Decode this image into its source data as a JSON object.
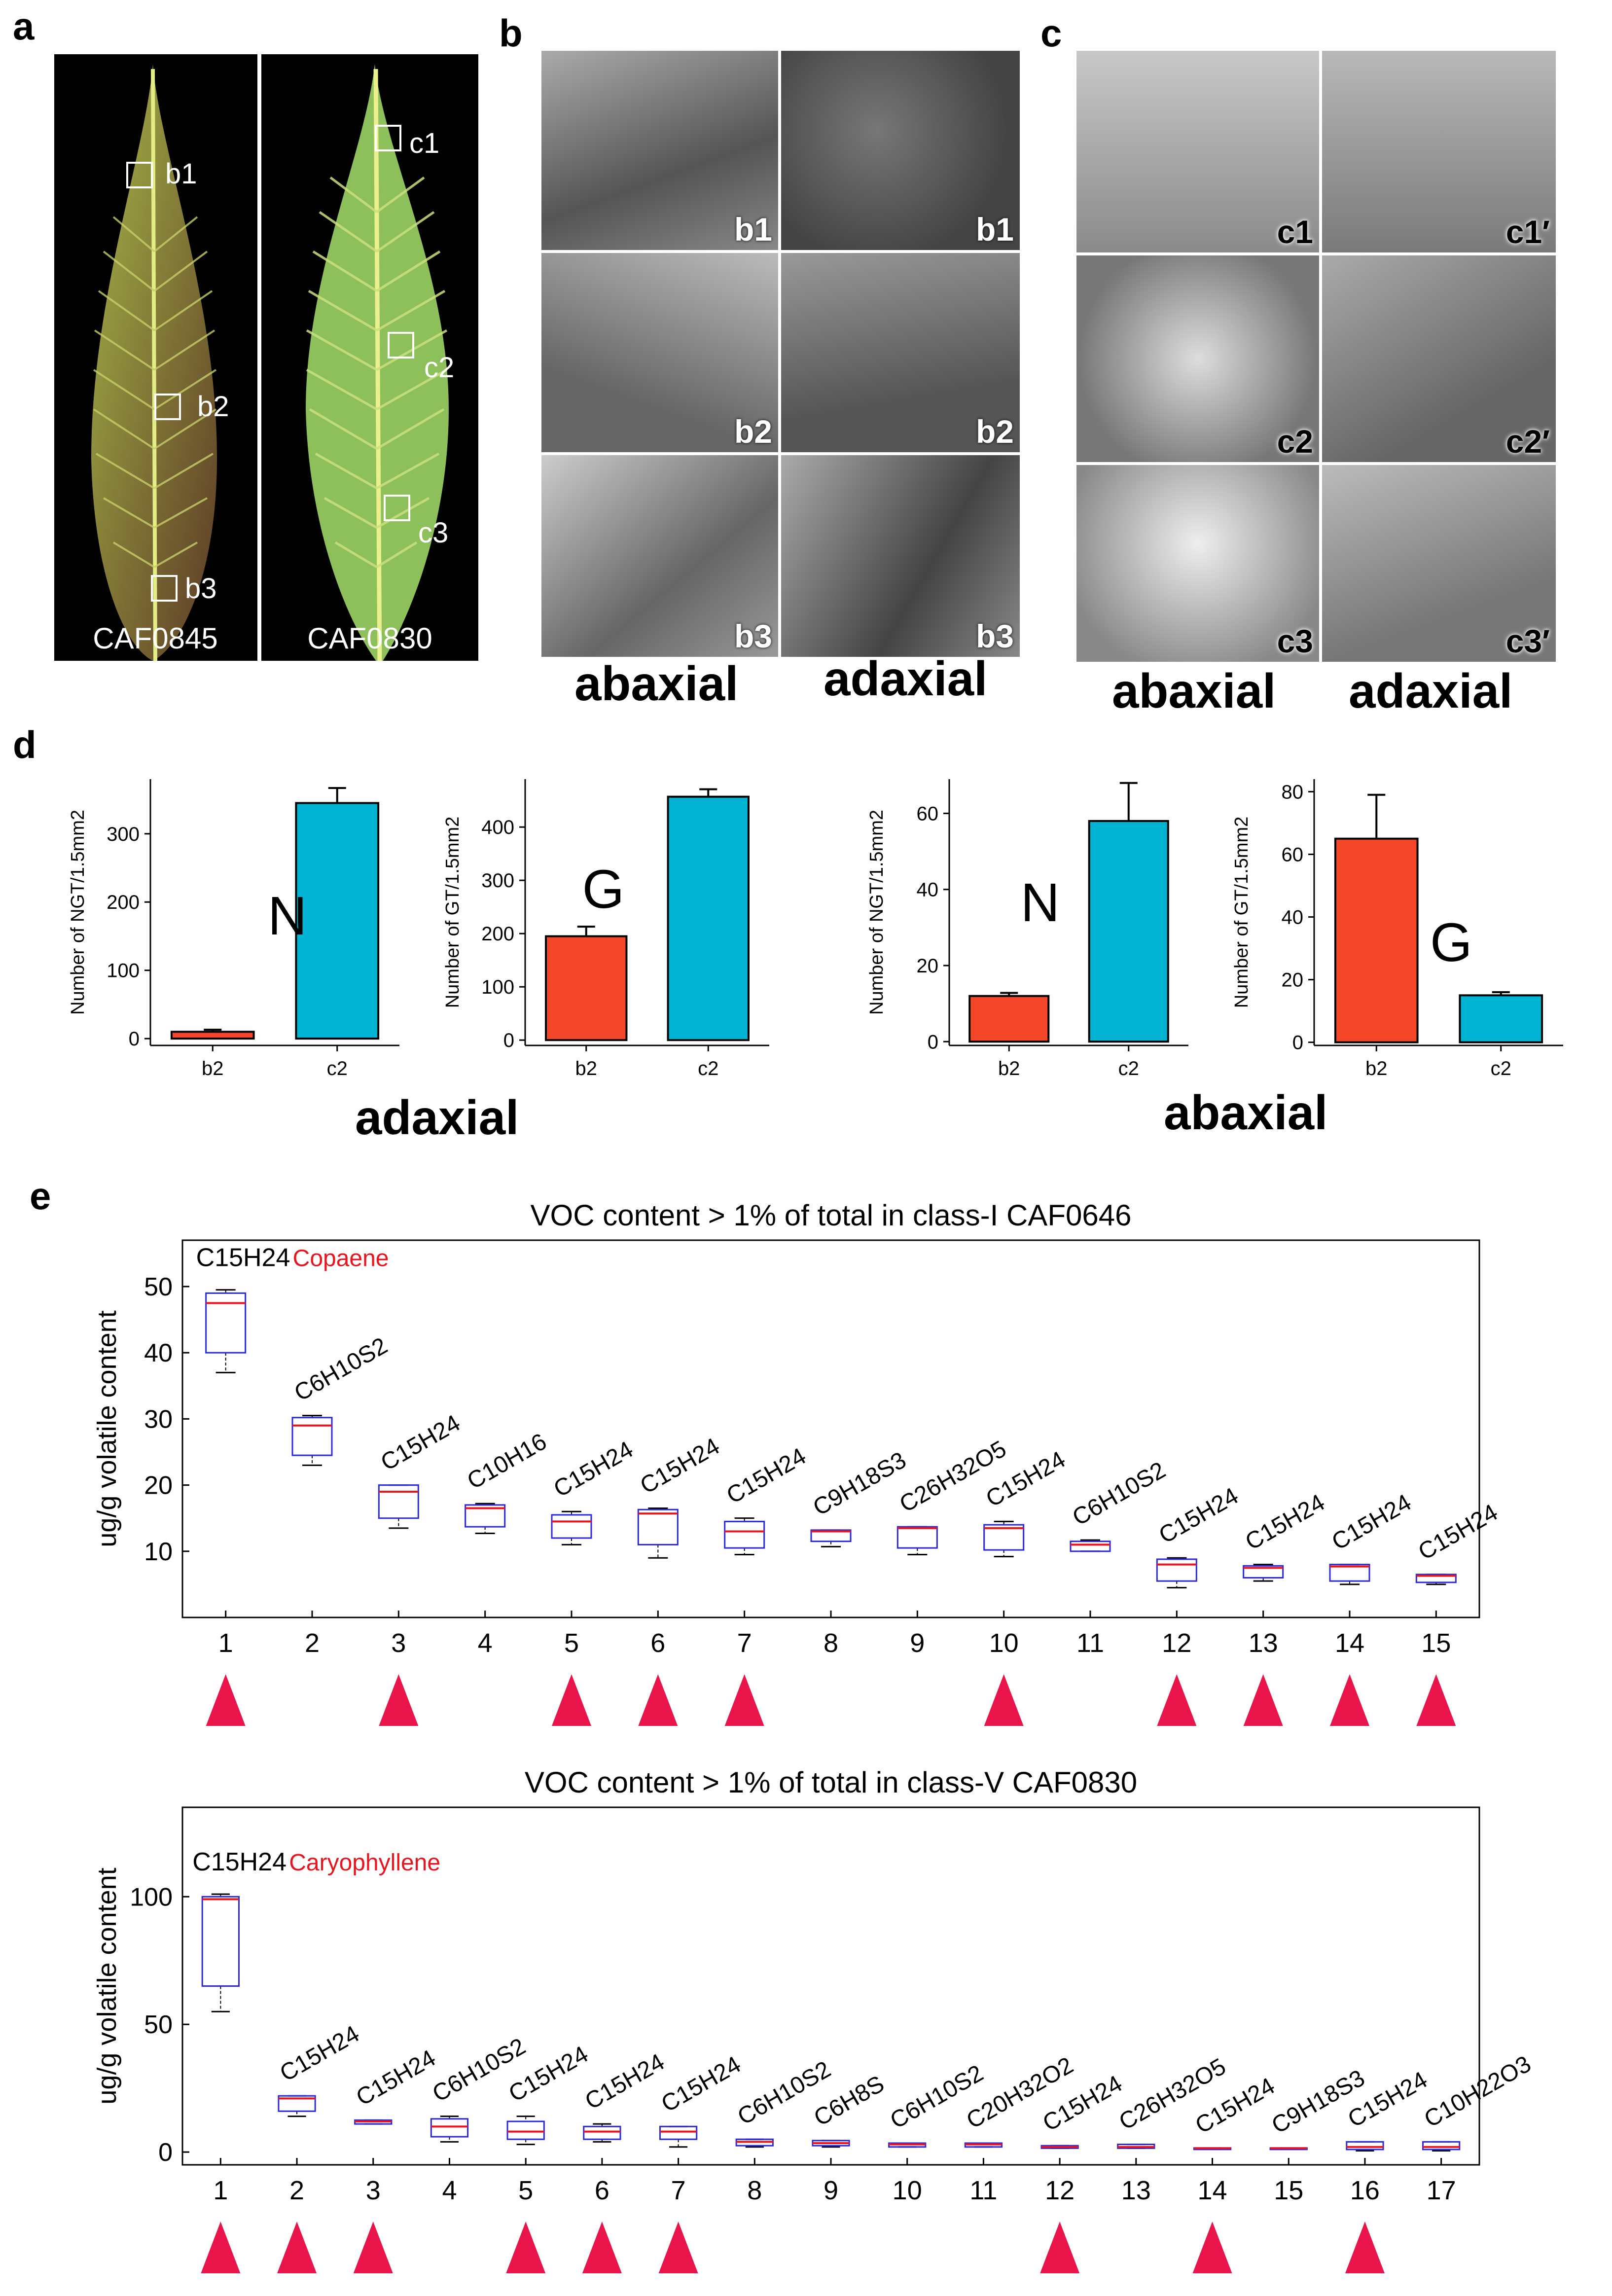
{
  "panels": {
    "a": "a",
    "b": "b",
    "c": "c",
    "d": "d",
    "e": "e"
  },
  "panel_a": {
    "leaves": [
      {
        "name": "CAF0845",
        "boxes": [
          "b1",
          "b2",
          "b3"
        ]
      },
      {
        "name": "CAF0830",
        "boxes": [
          "c1",
          "c2",
          "c3"
        ]
      }
    ]
  },
  "panel_b": {
    "tiles": [
      [
        "b1",
        "b1"
      ],
      [
        "b2",
        "b2"
      ],
      [
        "b3",
        "b3"
      ]
    ],
    "col_labels": [
      "abaxial",
      "adaxial"
    ]
  },
  "panel_c": {
    "tiles": [
      [
        "c1",
        "c1′"
      ],
      [
        "c2",
        "c2′"
      ],
      [
        "c3",
        "c3′"
      ]
    ],
    "col_labels": [
      "abaxial",
      "adaxial"
    ]
  },
  "panel_d": {
    "group_labels": [
      "adaxial",
      "abaxial"
    ],
    "colors": {
      "b2": "#f4472a",
      "c2": "#00b3d2"
    },
    "chart_data": [
      {
        "type": "bar",
        "ylabel": "Number of NGT/1.5mm2",
        "letter": "N",
        "categories": [
          "b2",
          "c2"
        ],
        "values": [
          10,
          345
        ],
        "errors": [
          3,
          22
        ],
        "yticks": [
          0,
          100,
          200,
          300
        ],
        "ylim": [
          -10,
          380
        ]
      },
      {
        "type": "bar",
        "ylabel": "Number of GT/1.5mm2",
        "letter": "G",
        "categories": [
          "b2",
          "c2"
        ],
        "values": [
          195,
          457
        ],
        "errors": [
          18,
          14
        ],
        "yticks": [
          0,
          100,
          200,
          300,
          400
        ],
        "ylim": [
          -10,
          490
        ]
      },
      {
        "type": "bar",
        "ylabel": "Number of NGT/1.5mm2",
        "letter": "N",
        "categories": [
          "b2",
          "c2"
        ],
        "values": [
          12,
          58
        ],
        "errors": [
          0.8,
          10
        ],
        "yticks": [
          0,
          20,
          40,
          60
        ],
        "ylim": [
          -1,
          69
        ]
      },
      {
        "type": "bar",
        "ylabel": "Number of GT/1.5mm2",
        "letter": "G",
        "categories": [
          "b2",
          "c2"
        ],
        "values": [
          65,
          15
        ],
        "errors": [
          14,
          1
        ],
        "yticks": [
          0,
          20,
          40,
          60,
          80
        ],
        "ylim": [
          -1,
          84
        ]
      }
    ]
  },
  "panel_e": {
    "colors": {
      "box": "#2a2adc",
      "median": "#e8141e",
      "marker": "#e8144a",
      "highlight": "#e8141e"
    },
    "chart_data": [
      {
        "type": "box",
        "title": "VOC content > 1% of total in class-I CAF0646",
        "ylabel": "ug/g volatile content",
        "ylim": [
          0,
          57
        ],
        "yticks": [
          10,
          20,
          30,
          40,
          50
        ],
        "highlight": {
          "label": "Copaene",
          "index": 1
        },
        "categories": [
          "1",
          "2",
          "3",
          "4",
          "5",
          "6",
          "7",
          "8",
          "9",
          "10",
          "11",
          "12",
          "13",
          "14",
          "15"
        ],
        "compounds": [
          "C15H24",
          "C6H10S2",
          "C15H24",
          "C10H16",
          "C15H24",
          "C15H24",
          "C15H24",
          "C9H18S3",
          "C26H32O5",
          "C15H24",
          "C6H10S2",
          "C15H24",
          "C15H24",
          "C15H24",
          "C15H24"
        ],
        "boxes": [
          {
            "min": 37,
            "q1": 40,
            "median": 47.5,
            "q3": 49,
            "max": 49.5
          },
          {
            "min": 23,
            "q1": 24.5,
            "median": 29,
            "q3": 30.2,
            "max": 30.5
          },
          {
            "min": 13.5,
            "q1": 15,
            "median": 19,
            "q3": 20,
            "max": 20
          },
          {
            "min": 12.7,
            "q1": 13.7,
            "median": 16.5,
            "q3": 17,
            "max": 17.2
          },
          {
            "min": 11,
            "q1": 12,
            "median": 14.5,
            "q3": 15.5,
            "max": 16
          },
          {
            "min": 9,
            "q1": 11,
            "median": 15.7,
            "q3": 16.3,
            "max": 16.5
          },
          {
            "min": 9.5,
            "q1": 10.5,
            "median": 13,
            "q3": 14.5,
            "max": 15
          },
          {
            "min": 10.7,
            "q1": 11.5,
            "median": 13,
            "q3": 13.2,
            "max": 13.2
          },
          {
            "min": 9.5,
            "q1": 10.5,
            "median": 13.5,
            "q3": 13.7,
            "max": 13.7
          },
          {
            "min": 9.2,
            "q1": 10.2,
            "median": 13.5,
            "q3": 14,
            "max": 14.5
          },
          {
            "min": 10,
            "q1": 10,
            "median": 11,
            "q3": 11.5,
            "max": 11.7
          },
          {
            "min": 4.5,
            "q1": 5.5,
            "median": 8,
            "q3": 8.8,
            "max": 9
          },
          {
            "min": 5.5,
            "q1": 6,
            "median": 7.5,
            "q3": 7.8,
            "max": 8
          },
          {
            "min": 5,
            "q1": 5.5,
            "median": 7.7,
            "q3": 8,
            "max": 8
          },
          {
            "min": 5,
            "q1": 5.3,
            "median": 6.3,
            "q3": 6.5,
            "max": 6.5
          }
        ],
        "markers": [
          1,
          3,
          5,
          6,
          7,
          10,
          12,
          13,
          14,
          15
        ]
      },
      {
        "type": "box",
        "title": "VOC content > 1% of total in class-V CAF0830",
        "ylabel": "ug/g volatile content",
        "ylim": [
          -5,
          135
        ],
        "yticks": [
          0,
          50,
          100
        ],
        "highlight": {
          "label": "Caryophyllene",
          "index": 1
        },
        "categories": [
          "1",
          "2",
          "3",
          "4",
          "5",
          "6",
          "7",
          "8",
          "9",
          "10",
          "11",
          "12",
          "13",
          "14",
          "15",
          "16",
          "17"
        ],
        "compounds": [
          "C15H24",
          "C15H24",
          "C15H24",
          "C6H10S2",
          "C15H24",
          "C15H24",
          "C15H24",
          "C6H10S2",
          "C6H8S",
          "C6H10S2",
          "C20H32O2",
          "C15H24",
          "C26H32O5",
          "C15H24",
          "C9H18S3",
          "C15H24",
          "C10H22O3"
        ],
        "boxes": [
          {
            "min": 55,
            "q1": 65,
            "median": 99,
            "q3": 100,
            "max": 101
          },
          {
            "min": 14,
            "q1": 16,
            "median": 21,
            "q3": 22,
            "max": 22
          },
          {
            "min": 11,
            "q1": 11,
            "median": 12,
            "q3": 12.5,
            "max": 12.5
          },
          {
            "min": 4,
            "q1": 6,
            "median": 10,
            "q3": 13,
            "max": 14
          },
          {
            "min": 3,
            "q1": 5,
            "median": 8,
            "q3": 12,
            "max": 14
          },
          {
            "min": 4,
            "q1": 5,
            "median": 8,
            "q3": 10,
            "max": 11
          },
          {
            "min": 2,
            "q1": 5,
            "median": 8,
            "q3": 10,
            "max": 10
          },
          {
            "min": 2,
            "q1": 2.5,
            "median": 4,
            "q3": 5,
            "max": 5
          },
          {
            "min": 2,
            "q1": 2.5,
            "median": 3.5,
            "q3": 4.5,
            "max": 4.5
          },
          {
            "min": 2,
            "q1": 2,
            "median": 3,
            "q3": 3.5,
            "max": 3.5
          },
          {
            "min": 2,
            "q1": 2,
            "median": 3,
            "q3": 3.5,
            "max": 3.5
          },
          {
            "min": 1.5,
            "q1": 1.5,
            "median": 2,
            "q3": 2.5,
            "max": 2.5
          },
          {
            "min": 1.5,
            "q1": 1.5,
            "median": 2,
            "q3": 3,
            "max": 3
          },
          {
            "min": 1.5,
            "q1": 1.5,
            "median": 1.5,
            "q3": 1.6,
            "max": 1.6
          },
          {
            "min": 1.3,
            "q1": 1.3,
            "median": 1.5,
            "q3": 1.6,
            "max": 1.6
          },
          {
            "min": 0.5,
            "q1": 1,
            "median": 2,
            "q3": 4,
            "max": 4
          },
          {
            "min": 0.5,
            "q1": 1,
            "median": 2,
            "q3": 4,
            "max": 4
          }
        ],
        "markers": [
          1,
          2,
          3,
          5,
          6,
          7,
          12,
          14,
          16
        ]
      }
    ]
  }
}
